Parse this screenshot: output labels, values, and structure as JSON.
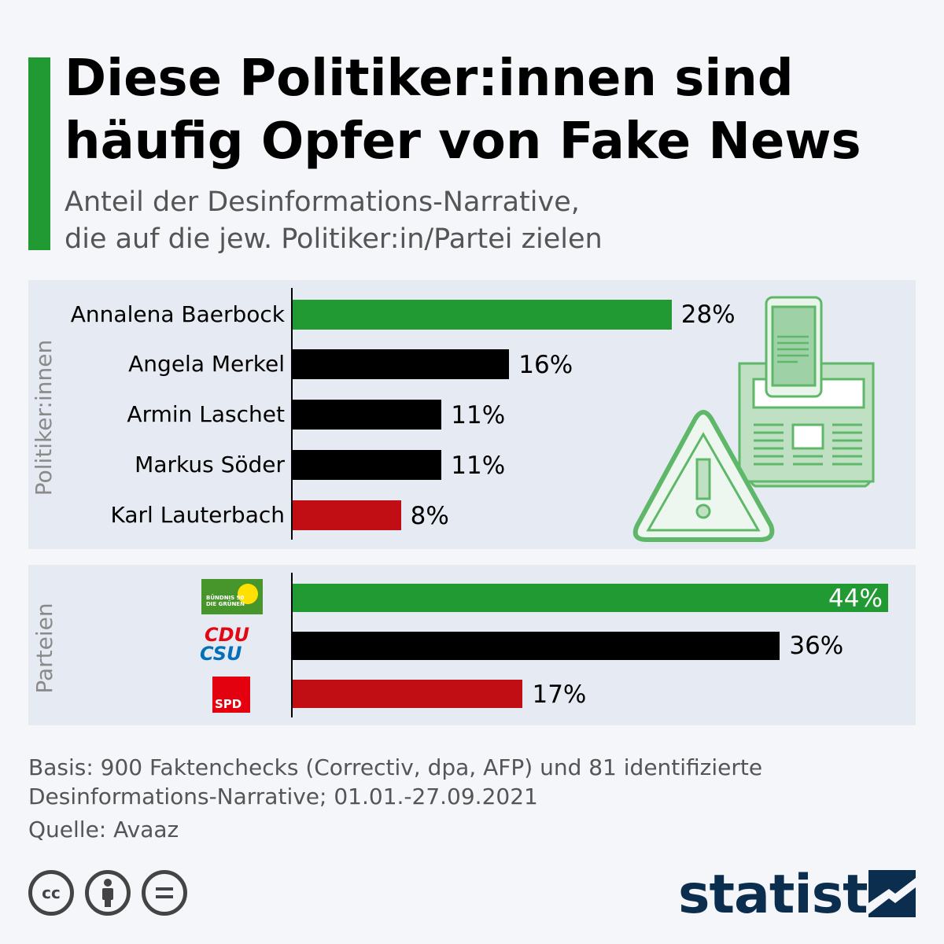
{
  "title_lines": [
    "Diese Politiker:innen sind",
    "häufig Opfer von Fake News"
  ],
  "subtitle_lines": [
    "Anteil der Desinformations-Narrative,",
    "die auf die jew. Politiker:in/Partei zielen"
  ],
  "colors": {
    "green": "#229a34",
    "black": "#000000",
    "red": "#c10d14",
    "accent": "#229a34"
  },
  "chart_data": [
    {
      "type": "bar",
      "orientation": "horizontal",
      "group_label": "Politiker:innen",
      "categories": [
        "Annalena Baerbock",
        "Angela Merkel",
        "Armin Laschet",
        "Markus Söder",
        "Karl Lauterbach"
      ],
      "values": [
        28,
        16,
        11,
        11,
        8
      ],
      "value_labels": [
        "28%",
        "16%",
        "11%",
        "11%",
        "8%"
      ],
      "bar_colors": [
        "#229a34",
        "#000000",
        "#000000",
        "#000000",
        "#c10d14"
      ],
      "xlim": [
        0,
        44
      ]
    },
    {
      "type": "bar",
      "orientation": "horizontal",
      "group_label": "Parteien",
      "categories": [
        "Bündnis 90/Die Grünen",
        "CDU/CSU",
        "SPD"
      ],
      "values": [
        44,
        36,
        17
      ],
      "value_labels": [
        "44%",
        "36%",
        "17%"
      ],
      "bar_colors": [
        "#229a34",
        "#000000",
        "#c10d14"
      ],
      "xlim": [
        0,
        44
      ]
    }
  ],
  "logos": {
    "gruene_text_1": "BÜNDNIS 90",
    "gruene_text_2": "DIE GRÜNEN",
    "cdu": "CDU",
    "csu": "CSU",
    "spd": "SPD"
  },
  "source_lines": [
    "Basis: 900 Faktenchecks (Correctiv, dpa, AFP) und 81 identifizierte",
    "Desinformations-Narrative; 01.01.-27.09.2021"
  ],
  "quelle": "Quelle: Avaaz",
  "brand": "statista",
  "license_icons": [
    "cc-icon",
    "attribution-icon",
    "no-derivatives-icon"
  ]
}
